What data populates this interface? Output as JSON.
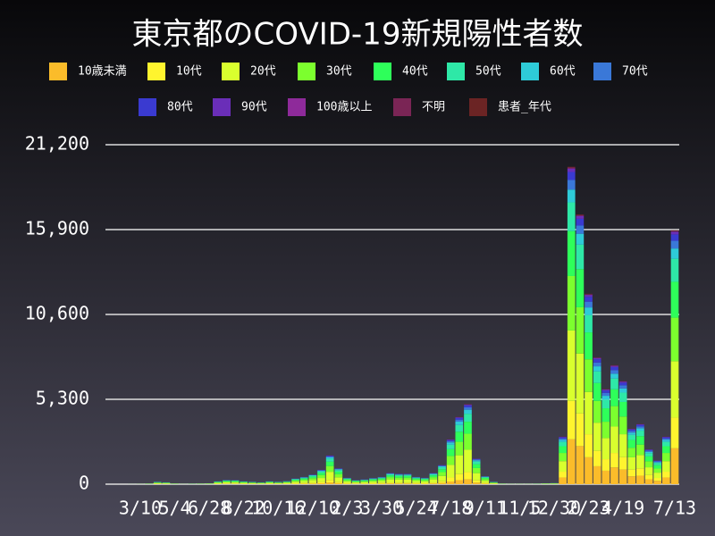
{
  "chart_data": {
    "type": "stacked-bar",
    "title": "東京都のCOVID-19新規陽性者数",
    "categories": [
      null,
      null,
      null,
      "3/10",
      null,
      null,
      null,
      "5/4",
      null,
      null,
      null,
      "6/28",
      null,
      null,
      null,
      "8/22",
      null,
      null,
      null,
      "10/16",
      null,
      null,
      null,
      "12/10",
      null,
      null,
      null,
      "2/3",
      null,
      null,
      null,
      "3/30",
      null,
      null,
      null,
      "5/24",
      null,
      null,
      null,
      "7/18",
      null,
      null,
      null,
      "9/11",
      null,
      null,
      null,
      "11/5",
      null,
      null,
      null,
      "12/30",
      null,
      null,
      null,
      "2/23",
      null,
      null,
      null,
      "4/19",
      null,
      null,
      null,
      null,
      null,
      "7/13"
    ],
    "ylim": [
      0,
      21200
    ],
    "yticks": [
      0,
      {
        "value": 5300,
        "label": "5,300"
      },
      {
        "value": 10600,
        "label": "10,600"
      },
      {
        "value": 15900,
        "label": "15,900"
      },
      {
        "value": 21200,
        "label": "21,200"
      }
    ],
    "grid": true,
    "series": [
      {
        "name": "10歳未満",
        "color": "#fbbc2a",
        "values": [
          0,
          0,
          0,
          1,
          2,
          9,
          7,
          3,
          1,
          2,
          2,
          4,
          11,
          16,
          15,
          11,
          9,
          7,
          11,
          9,
          12,
          21,
          27,
          36,
          54,
          108,
          60,
          24,
          15,
          18,
          23,
          27,
          42,
          39,
          39,
          27,
          24,
          42,
          72,
          168,
          252,
          300,
          96,
          30,
          9,
          2,
          1,
          1,
          1,
          2,
          4,
          4,
          420,
          2800,
          2380,
          1680,
          1120,
          840,
          1050,
          910,
          490,
          532,
          308,
          210,
          420,
          2240
        ]
      },
      {
        "name": "10代",
        "color": "#fff42e",
        "values": [
          0,
          0,
          0,
          1,
          4,
          14,
          11,
          5,
          1,
          3,
          4,
          5,
          16,
          23,
          23,
          16,
          14,
          11,
          16,
          14,
          18,
          32,
          41,
          54,
          81,
          162,
          90,
          36,
          23,
          27,
          34,
          41,
          63,
          59,
          59,
          41,
          36,
          63,
          108,
          252,
          378,
          450,
          144,
          45,
          14,
          4,
          2,
          2,
          2,
          3,
          5,
          6,
          360,
          2400,
          2040,
          1440,
          960,
          720,
          900,
          780,
          420,
          456,
          264,
          180,
          360,
          1920
        ]
      },
      {
        "name": "20代",
        "color": "#d9ff2e",
        "values": [
          0,
          1,
          1,
          3,
          11,
          42,
          34,
          14,
          3,
          8,
          11,
          17,
          50,
          73,
          70,
          50,
          42,
          34,
          50,
          42,
          56,
          98,
          126,
          168,
          252,
          504,
          280,
          112,
          70,
          84,
          106,
          126,
          196,
          182,
          182,
          126,
          112,
          196,
          336,
          784,
          1176,
          1400,
          448,
          140,
          42,
          11,
          6,
          6,
          6,
          8,
          17,
          20,
          660,
          4400,
          3740,
          2640,
          1760,
          1320,
          1650,
          1430,
          770,
          836,
          484,
          330,
          660,
          3520
        ]
      },
      {
        "name": "30代",
        "color": "#7cff2e",
        "values": [
          0,
          0,
          1,
          2,
          8,
          30,
          24,
          10,
          2,
          6,
          8,
          12,
          36,
          52,
          50,
          36,
          30,
          24,
          36,
          30,
          40,
          70,
          90,
          120,
          180,
          360,
          200,
          80,
          50,
          60,
          76,
          90,
          140,
          130,
          130,
          90,
          80,
          140,
          240,
          560,
          840,
          1000,
          320,
          100,
          30,
          8,
          4,
          4,
          4,
          6,
          12,
          14,
          510,
          3400,
          2890,
          2040,
          1360,
          1020,
          1275,
          1105,
          595,
          646,
          374,
          255,
          510,
          2720
        ]
      },
      {
        "name": "40代",
        "color": "#2eff5a",
        "values": [
          0,
          0,
          1,
          2,
          6,
          23,
          18,
          8,
          2,
          5,
          6,
          9,
          27,
          39,
          38,
          27,
          23,
          18,
          27,
          23,
          30,
          53,
          68,
          90,
          135,
          270,
          150,
          60,
          38,
          45,
          57,
          68,
          105,
          98,
          98,
          68,
          60,
          105,
          180,
          420,
          630,
          750,
          240,
          75,
          23,
          6,
          3,
          3,
          3,
          5,
          9,
          11,
          420,
          2800,
          2380,
          1680,
          1120,
          840,
          1050,
          910,
          490,
          532,
          308,
          210,
          420,
          2240
        ]
      },
      {
        "name": "50代",
        "color": "#2ee8a7",
        "values": [
          0,
          0,
          1,
          1,
          4,
          15,
          12,
          5,
          1,
          3,
          4,
          6,
          18,
          26,
          25,
          18,
          15,
          12,
          18,
          15,
          20,
          35,
          45,
          60,
          90,
          180,
          100,
          40,
          25,
          30,
          38,
          45,
          70,
          65,
          65,
          45,
          40,
          70,
          120,
          280,
          420,
          500,
          160,
          50,
          15,
          4,
          2,
          2,
          2,
          3,
          6,
          7,
          270,
          1800,
          1530,
          1080,
          720,
          540,
          675,
          585,
          315,
          342,
          198,
          135,
          270,
          1440
        ]
      },
      {
        "name": "60代",
        "color": "#2ecbd8",
        "values": [
          0,
          0,
          0,
          1,
          2,
          8,
          6,
          3,
          1,
          2,
          2,
          3,
          9,
          13,
          13,
          9,
          8,
          6,
          9,
          8,
          10,
          18,
          23,
          30,
          45,
          90,
          50,
          20,
          13,
          15,
          19,
          23,
          35,
          33,
          33,
          23,
          20,
          35,
          60,
          140,
          210,
          250,
          80,
          25,
          8,
          2,
          1,
          1,
          1,
          2,
          3,
          4,
          120,
          800,
          680,
          480,
          320,
          240,
          300,
          260,
          140,
          152,
          88,
          60,
          120,
          640
        ]
      },
      {
        "name": "70代",
        "color": "#3a78d8",
        "values": [
          0,
          0,
          0,
          0,
          1,
          5,
          4,
          2,
          0,
          1,
          1,
          2,
          5,
          8,
          8,
          5,
          5,
          4,
          5,
          5,
          6,
          11,
          14,
          18,
          27,
          54,
          30,
          12,
          8,
          9,
          11,
          14,
          21,
          20,
          20,
          14,
          12,
          21,
          36,
          84,
          126,
          150,
          48,
          15,
          5,
          1,
          1,
          1,
          1,
          1,
          2,
          2,
          90,
          600,
          510,
          360,
          240,
          180,
          225,
          195,
          105,
          114,
          66,
          45,
          90,
          480
        ]
      },
      {
        "name": "80代",
        "color": "#3a3ad0",
        "values": [
          0,
          0,
          0,
          0,
          1,
          4,
          3,
          1,
          0,
          1,
          1,
          2,
          5,
          7,
          6,
          5,
          4,
          3,
          5,
          4,
          5,
          9,
          11,
          15,
          23,
          45,
          25,
          10,
          6,
          8,
          10,
          11,
          18,
          16,
          16,
          11,
          10,
          18,
          30,
          70,
          105,
          125,
          40,
          13,
          4,
          1,
          1,
          1,
          1,
          1,
          2,
          2,
          75,
          500,
          425,
          300,
          200,
          150,
          188,
          163,
          88,
          95,
          55,
          38,
          75,
          400
        ]
      },
      {
        "name": "90代",
        "color": "#6a2eb8",
        "values": [
          0,
          0,
          0,
          0,
          0,
          2,
          1,
          1,
          0,
          0,
          0,
          1,
          2,
          3,
          3,
          2,
          2,
          1,
          2,
          2,
          2,
          4,
          5,
          6,
          9,
          18,
          10,
          4,
          3,
          3,
          4,
          5,
          7,
          7,
          7,
          5,
          4,
          7,
          12,
          28,
          42,
          50,
          16,
          5,
          2,
          0,
          0,
          0,
          0,
          0,
          1,
          1,
          30,
          200,
          170,
          120,
          80,
          60,
          75,
          65,
          35,
          38,
          22,
          15,
          30,
          160
        ]
      },
      {
        "name": "100歳以上",
        "color": "#8e2a9a",
        "values": [
          0,
          0,
          0,
          0,
          0,
          0,
          0,
          0,
          0,
          0,
          0,
          0,
          0,
          0,
          0,
          0,
          0,
          0,
          0,
          0,
          0,
          0,
          0,
          0,
          0,
          2,
          0,
          0,
          0,
          0,
          0,
          0,
          0,
          0,
          0,
          0,
          0,
          0,
          0,
          3,
          4,
          5,
          0,
          0,
          0,
          0,
          0,
          0,
          0,
          0,
          0,
          0,
          3,
          20,
          17,
          12,
          8,
          6,
          8,
          7,
          4,
          4,
          2,
          2,
          3,
          16
        ]
      },
      {
        "name": "不明",
        "color": "#7a2555",
        "values": [
          0,
          0,
          0,
          0,
          0,
          0,
          0,
          0,
          0,
          0,
          0,
          0,
          0,
          0,
          0,
          0,
          0,
          0,
          0,
          0,
          0,
          1,
          1,
          2,
          3,
          5,
          3,
          1,
          1,
          1,
          1,
          1,
          2,
          2,
          2,
          1,
          1,
          2,
          4,
          8,
          13,
          15,
          5,
          2,
          0,
          0,
          0,
          0,
          0,
          0,
          0,
          0,
          9,
          60,
          51,
          36,
          24,
          18,
          23,
          20,
          11,
          11,
          7,
          5,
          9,
          48
        ]
      },
      {
        "name": "患者_年代",
        "color": "#6b2424",
        "values": [
          0,
          0,
          0,
          0,
          0,
          0,
          0,
          0,
          0,
          0,
          0,
          0,
          0,
          0,
          0,
          0,
          0,
          0,
          0,
          0,
          0,
          0,
          0,
          0,
          2,
          4,
          2,
          0,
          0,
          0,
          0,
          0,
          0,
          0,
          0,
          0,
          0,
          0,
          0,
          6,
          8,
          10,
          3,
          0,
          0,
          0,
          0,
          0,
          0,
          0,
          0,
          0,
          6,
          40,
          34,
          24,
          16,
          12,
          15,
          13,
          7,
          8,
          4,
          3,
          6,
          32
        ]
      }
    ]
  }
}
